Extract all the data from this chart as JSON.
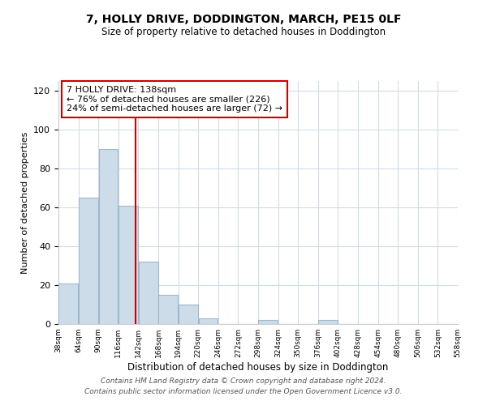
{
  "title": "7, HOLLY DRIVE, DODDINGTON, MARCH, PE15 0LF",
  "subtitle": "Size of property relative to detached houses in Doddington",
  "xlabel": "Distribution of detached houses by size in Doddington",
  "ylabel": "Number of detached properties",
  "bar_edges": [
    38,
    64,
    90,
    116,
    142,
    168,
    194,
    220,
    246,
    272,
    298,
    324,
    350,
    376,
    402,
    428,
    454,
    480,
    506,
    532,
    558
  ],
  "bar_values": [
    21,
    65,
    90,
    61,
    32,
    15,
    10,
    3,
    0,
    0,
    2,
    0,
    0,
    2,
    0,
    0,
    0,
    0,
    0,
    0
  ],
  "bar_color": "#ccdce8",
  "bar_edge_color": "#a0b8cc",
  "vline_x": 138,
  "vline_color": "#cc0000",
  "annotation_line1": "7 HOLLY DRIVE: 138sqm",
  "annotation_line2": "← 76% of detached houses are smaller (226)",
  "annotation_line3": "24% of semi-detached houses are larger (72) →",
  "annotation_box_color": "#ffffff",
  "annotation_box_edge": "#cc0000",
  "ylim": [
    0,
    125
  ],
  "yticks": [
    0,
    20,
    40,
    60,
    80,
    100,
    120
  ],
  "tick_labels": [
    "38sqm",
    "64sqm",
    "90sqm",
    "116sqm",
    "142sqm",
    "168sqm",
    "194sqm",
    "220sqm",
    "246sqm",
    "272sqm",
    "298sqm",
    "324sqm",
    "350sqm",
    "376sqm",
    "402sqm",
    "428sqm",
    "454sqm",
    "480sqm",
    "506sqm",
    "532sqm",
    "558sqm"
  ],
  "footer_line1": "Contains HM Land Registry data © Crown copyright and database right 2024.",
  "footer_line2": "Contains public sector information licensed under the Open Government Licence v3.0.",
  "bg_color": "#ffffff",
  "grid_color": "#d0dce8"
}
